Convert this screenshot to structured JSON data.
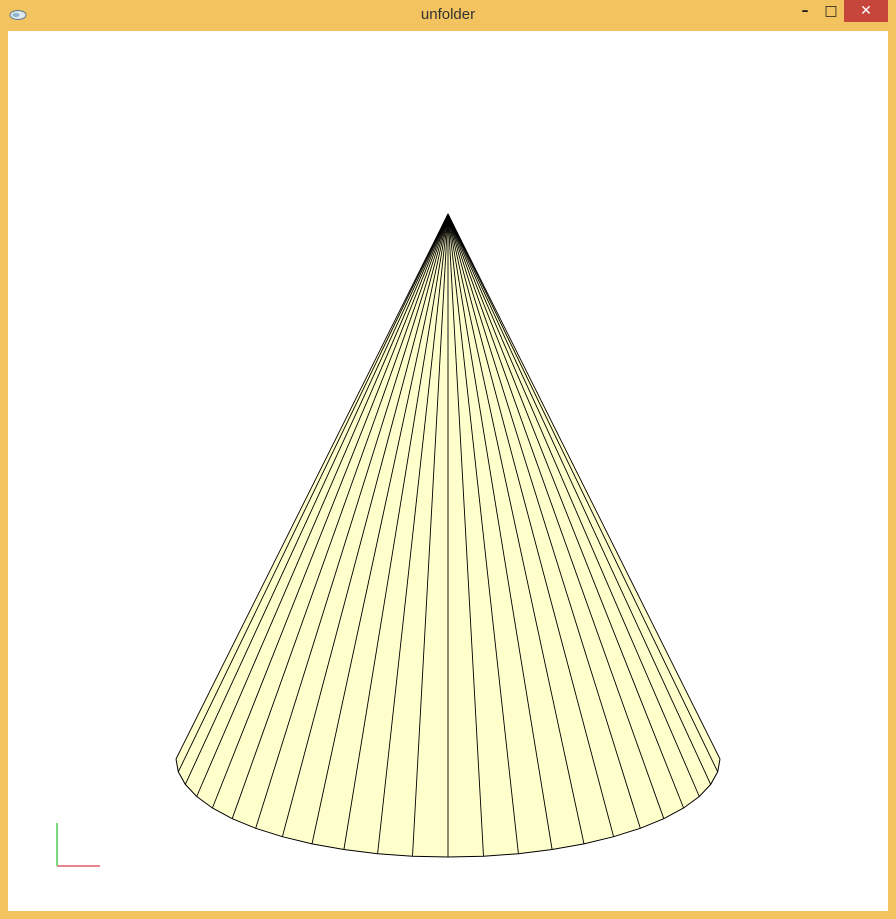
{
  "window": {
    "title": "unfolder",
    "controls": {
      "minimize": "–",
      "maximize": "□",
      "close": "✕"
    },
    "app_icon": "app-logo-icon"
  },
  "viewport": {
    "model": "cone-mesh",
    "segments": 24,
    "fill_color": "#ffffcc",
    "edge_color": "#000000",
    "background": "#ffffff",
    "axes": {
      "x_color": "#e05a6a",
      "y_color": "#4fd14f"
    }
  }
}
